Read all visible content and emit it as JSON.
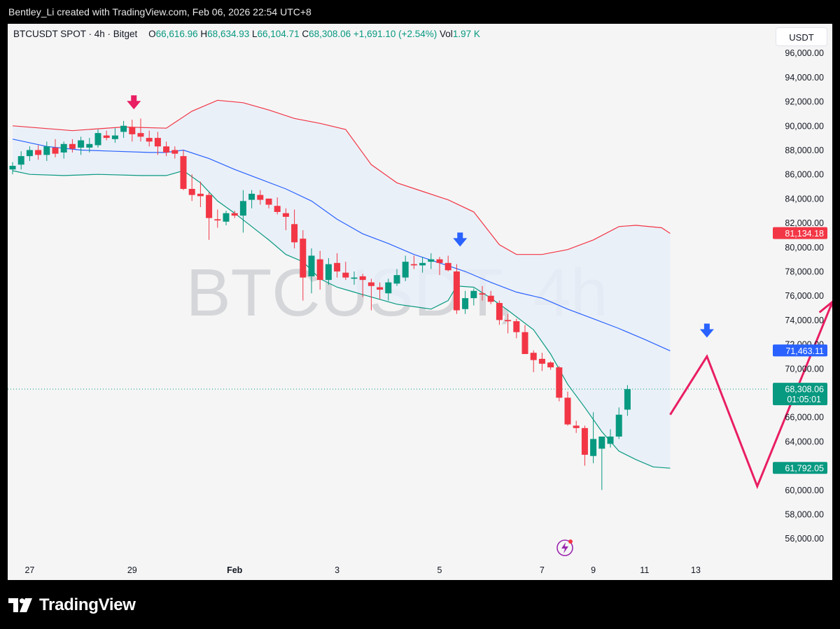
{
  "header": {
    "text": "Bentley_Li created with TradingView.com, Feb 06, 2026 22:54 UTC+8"
  },
  "legend": {
    "symbol": "BTCUSDT SPOT · 4h · Bitget",
    "open_label": "O",
    "open": "66,616.96",
    "high_label": "H",
    "high": "68,634.93",
    "low_label": "L",
    "low": "66,104.71",
    "close_label": "C",
    "close": "68,308.06",
    "change": "+1,691.10 (+2.54%)",
    "vol_label": "Vol",
    "vol": "1.97 K"
  },
  "unit_button": "USDT",
  "watermark": "BTCUSDT, 4h",
  "footer": {
    "brand": "TradingView"
  },
  "colors": {
    "up": "#089981",
    "down": "#f23645",
    "basis": "#2962ff",
    "upper": "#f23645",
    "lower": "#089981",
    "arrow_blue": "#2962ff",
    "arrow_pink": "#e91e63"
  },
  "chart_data": {
    "type": "candlestick",
    "y_ticks": [
      "56,000.00",
      "58,000.00",
      "60,000.00",
      "62,000.00",
      "64,000.00",
      "66,000.00",
      "68,000.00",
      "70,000.00",
      "72,000.00",
      "74,000.00",
      "76,000.00",
      "78,000.00",
      "80,000.00",
      "82,000.00",
      "84,000.00",
      "86,000.00",
      "88,000.00",
      "90,000.00",
      "92,000.00",
      "94,000.00",
      "96,000.00"
    ],
    "ylim": [
      54600,
      98400
    ],
    "x_ticks": [
      {
        "label": "27",
        "bar": 2
      },
      {
        "label": "29",
        "bar": 14
      },
      {
        "label": "Feb",
        "bar": 26,
        "bold": true
      },
      {
        "label": "3",
        "bar": 38
      },
      {
        "label": "5",
        "bar": 50
      },
      {
        "label": "7",
        "bar": 62
      },
      {
        "label": "9",
        "bar": 68
      },
      {
        "label": "11",
        "bar": 74
      },
      {
        "label": "13",
        "bar": 80
      }
    ],
    "price_labels": [
      {
        "value": 81134.18,
        "text": "81,134.18",
        "color": "#f23645"
      },
      {
        "value": 71463.11,
        "text": "71,463.11",
        "color": "#2962ff"
      },
      {
        "value": 68308.06,
        "text": "68,308.06",
        "sub": "01:05:01",
        "color": "#089981"
      },
      {
        "value": 61792.05,
        "text": "61,792.05",
        "color": "#089981"
      }
    ],
    "last_price": 68308.06,
    "candles": [
      [
        86400,
        87000,
        86000,
        86700
      ],
      [
        86800,
        87900,
        86400,
        87500
      ],
      [
        87500,
        88300,
        87100,
        88000
      ],
      [
        88000,
        88400,
        87200,
        87600
      ],
      [
        87600,
        88700,
        87100,
        88300
      ],
      [
        88200,
        88900,
        87400,
        87700
      ],
      [
        87800,
        88700,
        87300,
        88500
      ],
      [
        88500,
        88900,
        87800,
        88100
      ],
      [
        88200,
        89100,
        87600,
        88800
      ],
      [
        88200,
        89000,
        87800,
        88500
      ],
      [
        88400,
        89700,
        88200,
        89400
      ],
      [
        89200,
        89600,
        88800,
        89000
      ],
      [
        88900,
        89800,
        88600,
        89200
      ],
      [
        89500,
        90400,
        89000,
        90000
      ],
      [
        89900,
        90500,
        88700,
        89300
      ],
      [
        89400,
        90600,
        88700,
        89100
      ],
      [
        89000,
        89600,
        88300,
        88700
      ],
      [
        89000,
        89500,
        87600,
        88300
      ],
      [
        88300,
        88700,
        87500,
        87800
      ],
      [
        88000,
        88300,
        87300,
        87700
      ],
      [
        87500,
        88000,
        84700,
        84800
      ],
      [
        84800,
        86000,
        83800,
        84300
      ],
      [
        84400,
        85400,
        83300,
        84200
      ],
      [
        84300,
        84500,
        80600,
        82400
      ],
      [
        82300,
        83100,
        81600,
        82200
      ],
      [
        82100,
        83000,
        81800,
        82800
      ],
      [
        82800,
        83000,
        82400,
        82600
      ],
      [
        82600,
        84700,
        81200,
        83800
      ],
      [
        83900,
        84700,
        83200,
        84400
      ],
      [
        84300,
        84700,
        83500,
        83900
      ],
      [
        84000,
        84000,
        83200,
        83500
      ],
      [
        83400,
        84100,
        82700,
        82900
      ],
      [
        82800,
        83200,
        81400,
        82500
      ],
      [
        81900,
        83100,
        79900,
        80400
      ],
      [
        80700,
        81400,
        75600,
        77500
      ],
      [
        77600,
        79900,
        76200,
        79300
      ],
      [
        79000,
        79700,
        76500,
        77300
      ],
      [
        77300,
        79100,
        76900,
        78600
      ],
      [
        78700,
        79500,
        77500,
        78000
      ],
      [
        77900,
        78800,
        77300,
        77500
      ],
      [
        77400,
        78000,
        76900,
        77500
      ],
      [
        77600,
        77800,
        75900,
        77300
      ],
      [
        77100,
        77400,
        74800,
        76800
      ],
      [
        76700,
        77100,
        75700,
        76500
      ],
      [
        76200,
        77400,
        75600,
        77100
      ],
      [
        77000,
        78200,
        76800,
        77700
      ],
      [
        77500,
        79300,
        77200,
        78800
      ],
      [
        78600,
        79300,
        78200,
        78500
      ],
      [
        78500,
        79200,
        77900,
        78700
      ],
      [
        78800,
        79500,
        78200,
        79000
      ],
      [
        79000,
        79200,
        77700,
        78700
      ],
      [
        78700,
        79300,
        78000,
        78100
      ],
      [
        78000,
        78600,
        74500,
        74800
      ],
      [
        74900,
        76400,
        74500,
        75800
      ],
      [
        75800,
        76600,
        75200,
        76400
      ],
      [
        76200,
        76800,
        75600,
        76100
      ],
      [
        76000,
        76400,
        75300,
        75500
      ],
      [
        75400,
        75600,
        73600,
        74000
      ],
      [
        74000,
        74500,
        72900,
        73900
      ],
      [
        73900,
        74100,
        72500,
        73000
      ],
      [
        73000,
        73600,
        71200,
        71200
      ],
      [
        71300,
        71500,
        69700,
        70700
      ],
      [
        70800,
        71300,
        69800,
        70400
      ],
      [
        70500,
        70600,
        69900,
        70100
      ],
      [
        70100,
        70200,
        67300,
        67600
      ],
      [
        67600,
        68100,
        65300,
        65400
      ],
      [
        65300,
        65700,
        64700,
        65100
      ],
      [
        65100,
        65300,
        62000,
        62900
      ],
      [
        62800,
        66400,
        62200,
        64200
      ],
      [
        63400,
        64400,
        60000,
        64400
      ],
      [
        63800,
        65000,
        63500,
        64400
      ],
      [
        64400,
        66800,
        64200,
        66200
      ],
      [
        66617,
        68635,
        66105,
        68308
      ]
    ],
    "bands": {
      "upper": [
        [
          0,
          90000
        ],
        [
          7,
          89600
        ],
        [
          13,
          89900
        ],
        [
          18,
          89800
        ],
        [
          21,
          91200
        ],
        [
          24,
          92100
        ],
        [
          27,
          91900
        ],
        [
          30,
          91300
        ],
        [
          33,
          90600
        ],
        [
          36,
          90200
        ],
        [
          39,
          89700
        ],
        [
          42,
          86800
        ],
        [
          45,
          85300
        ],
        [
          48,
          84600
        ],
        [
          51,
          83900
        ],
        [
          54,
          82900
        ],
        [
          57,
          80200
        ],
        [
          59,
          79400
        ],
        [
          62,
          79400
        ],
        [
          65,
          79800
        ],
        [
          68,
          80600
        ],
        [
          71,
          81700
        ],
        [
          73,
          81800
        ],
        [
          76,
          81600
        ],
        [
          77,
          81134
        ]
      ],
      "basis": [
        [
          0,
          88900
        ],
        [
          4,
          88300
        ],
        [
          8,
          88000
        ],
        [
          12,
          87900
        ],
        [
          16,
          87800
        ],
        [
          18,
          87800
        ],
        [
          20,
          88000
        ],
        [
          23,
          87300
        ],
        [
          26,
          86400
        ],
        [
          29,
          85600
        ],
        [
          32,
          84800
        ],
        [
          35,
          83800
        ],
        [
          38,
          82300
        ],
        [
          41,
          81100
        ],
        [
          44,
          80300
        ],
        [
          47,
          79400
        ],
        [
          50,
          78700
        ],
        [
          53,
          78000
        ],
        [
          56,
          77100
        ],
        [
          59,
          76300
        ],
        [
          62,
          75800
        ],
        [
          65,
          74900
        ],
        [
          68,
          74100
        ],
        [
          71,
          73300
        ],
        [
          74,
          72400
        ],
        [
          77,
          71463
        ]
      ],
      "lower": [
        [
          0,
          86300
        ],
        [
          2,
          86000
        ],
        [
          6,
          85900
        ],
        [
          10,
          86000
        ],
        [
          15,
          85900
        ],
        [
          18,
          85900
        ],
        [
          20,
          86300
        ],
        [
          22,
          85300
        ],
        [
          24,
          83800
        ],
        [
          26,
          82800
        ],
        [
          28,
          81700
        ],
        [
          30,
          80600
        ],
        [
          32,
          79400
        ],
        [
          34,
          78800
        ],
        [
          36,
          77400
        ],
        [
          38,
          76700
        ],
        [
          40,
          76300
        ],
        [
          42,
          75900
        ],
        [
          45,
          75300
        ],
        [
          48,
          75000
        ],
        [
          49,
          74900
        ],
        [
          51,
          75600
        ],
        [
          52,
          76800
        ],
        [
          54,
          76700
        ],
        [
          56,
          75800
        ],
        [
          58,
          74800
        ],
        [
          61,
          73200
        ],
        [
          63,
          71200
        ],
        [
          65,
          68700
        ],
        [
          67,
          66800
        ],
        [
          69,
          64800
        ],
        [
          71,
          63200
        ],
        [
          73,
          62500
        ],
        [
          75,
          61900
        ],
        [
          77,
          61792
        ]
      ]
    },
    "annotations": {
      "arrows_down": [
        {
          "bar": 14.2,
          "price": 91700,
          "color": "pink"
        },
        {
          "bar": 52.4,
          "price": 80400,
          "color": "blue"
        },
        {
          "bar": 81.3,
          "price": 72900,
          "color": "blue"
        }
      ],
      "projection": [
        [
          77,
          66200
        ],
        [
          81.3,
          71000
        ],
        [
          87.2,
          60300
        ],
        [
          96,
          75500
        ]
      ]
    }
  }
}
